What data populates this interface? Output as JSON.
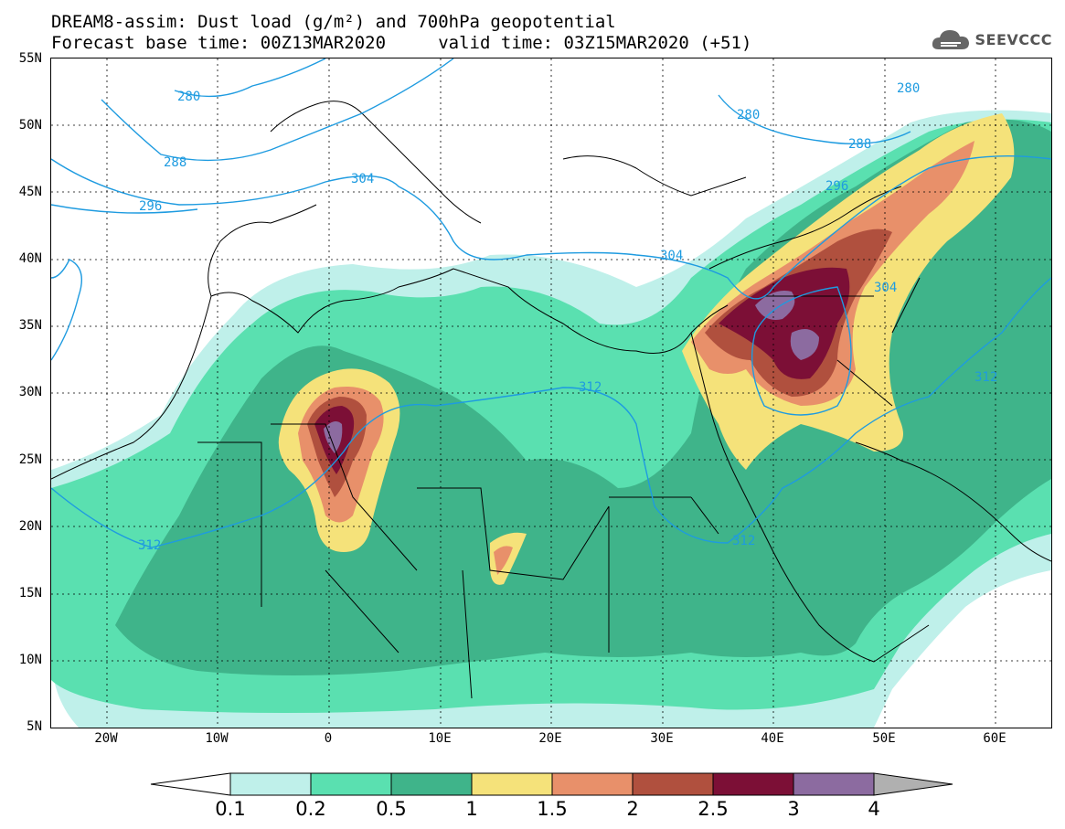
{
  "header": {
    "title_line1": "DREAM8-assim: Dust load (g/m²) and 700hPa geopotential",
    "title_line2": "Forecast base time: 00Z13MAR2020     valid time: 03Z15MAR2020 (+51)"
  },
  "logo": {
    "text": "SEEVCCC",
    "icon": "cloud-icon"
  },
  "axes": {
    "lat_labels": [
      "55N",
      "50N",
      "45N",
      "40N",
      "35N",
      "30N",
      "25N",
      "20N",
      "15N",
      "10N",
      "5N"
    ],
    "lon_labels": [
      "20W",
      "10W",
      "0",
      "10E",
      "20E",
      "30E",
      "40E",
      "50E",
      "60E"
    ],
    "lon_range": [
      -25,
      65
    ],
    "lat_range": [
      5,
      55
    ]
  },
  "contours": {
    "color": "#1e9be0",
    "labels": [
      "280",
      "280",
      "280",
      "288",
      "288",
      "296",
      "296",
      "304",
      "304",
      "304",
      "312",
      "312",
      "312",
      "312"
    ]
  },
  "colorbar": {
    "labels": [
      "0.1",
      "0.2",
      "0.5",
      "1",
      "1.5",
      "2",
      "2.5",
      "3",
      "4"
    ],
    "colors": [
      "#bff0ea",
      "#5ae0b0",
      "#3fb48a",
      "#f5e27a",
      "#e8906a",
      "#b0503e",
      "#7c0f36",
      "#8c6ba0",
      "#b0b0b0"
    ]
  }
}
